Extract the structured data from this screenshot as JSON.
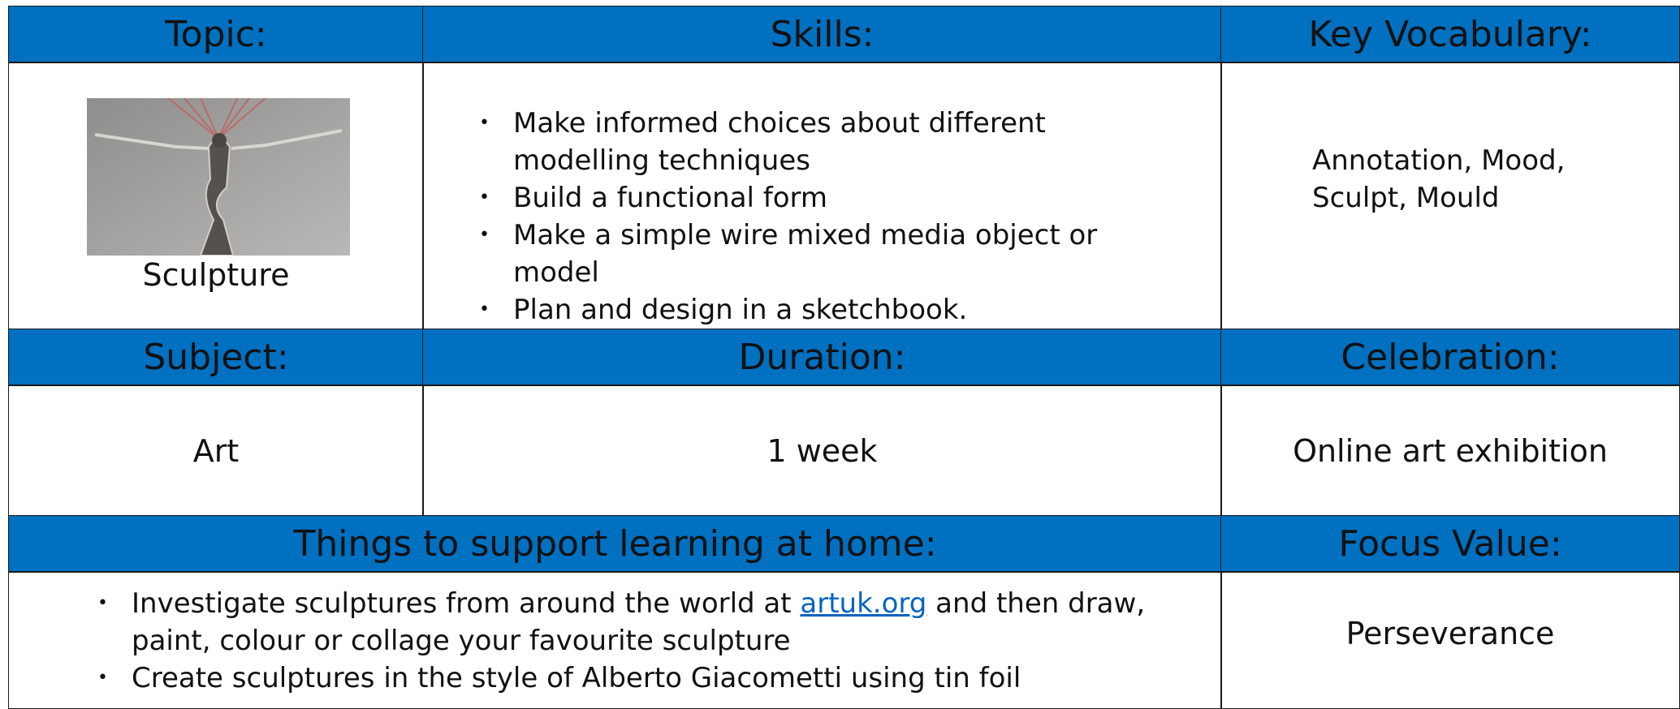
{
  "topic": {
    "header": "Topic:",
    "text": "Sculpture"
  },
  "skills": {
    "header": "Skills:",
    "items": [
      "Make informed choices about different modelling techniques",
      "Build a functional form",
      "Make a simple wire mixed media object or model",
      "Plan and design in a sketchbook."
    ]
  },
  "key_vocabulary": {
    "header": "Key Vocabulary:",
    "text": "Annotation, Mood, Sculpt, Mould"
  },
  "subject": {
    "header": "Subject:",
    "text": "Art"
  },
  "duration": {
    "header": "Duration:",
    "text": "1 week"
  },
  "celebration": {
    "header": "Celebration:",
    "text": "Online art exhibition"
  },
  "home_learning": {
    "header": "Things to support learning at home:",
    "items": [
      {
        "before": "Investigate sculptures from around the world at ",
        "link": "artuk.org",
        "after": " and then draw, paint, colour or collage your favourite sculpture"
      },
      "Create sculptures in the style of Alberto Giacometti using tin foil"
    ]
  },
  "focus_value": {
    "header": "Focus Value:",
    "text": "Perseverance"
  }
}
